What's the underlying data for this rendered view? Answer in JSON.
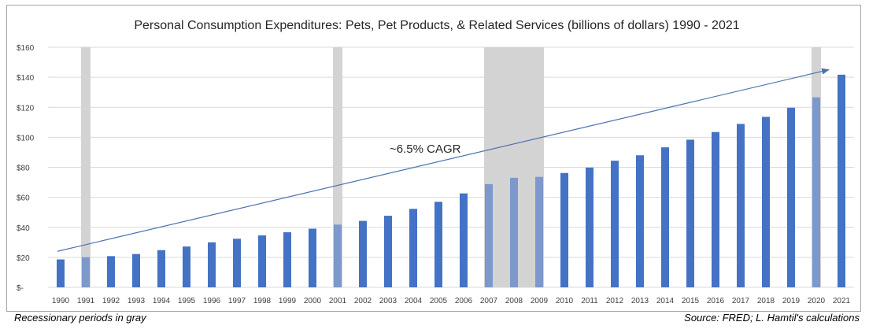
{
  "chart_data": {
    "type": "bar",
    "title": "Personal Consumption Expenditures: Pets, Pet Products, & Related Services (billions of dollars) 1990 - 2021",
    "categories": [
      "1990",
      "1991",
      "1992",
      "1993",
      "1994",
      "1995",
      "1996",
      "1997",
      "1998",
      "1999",
      "2000",
      "2001",
      "2002",
      "2003",
      "2004",
      "2005",
      "2006",
      "2007",
      "2008",
      "2009",
      "2010",
      "2011",
      "2012",
      "2013",
      "2014",
      "2015",
      "2016",
      "2017",
      "2018",
      "2019",
      "2020",
      "2021"
    ],
    "values": [
      18.6,
      20.1,
      20.8,
      22.2,
      24.8,
      27.2,
      30.0,
      32.4,
      34.6,
      36.7,
      39.1,
      41.8,
      44.3,
      47.7,
      52.3,
      57.0,
      62.6,
      68.8,
      73.0,
      73.6,
      76.2,
      79.8,
      84.4,
      88.0,
      93.3,
      98.4,
      103.5,
      108.9,
      113.6,
      119.7,
      126.6,
      141.7
    ],
    "ylim": [
      0,
      160
    ],
    "yticks": [
      {
        "value": 0,
        "label": "$-"
      },
      {
        "value": 20,
        "label": "$20"
      },
      {
        "value": 40,
        "label": "$40"
      },
      {
        "value": 60,
        "label": "$60"
      },
      {
        "value": 80,
        "label": "$80"
      },
      {
        "value": 100,
        "label": "$100"
      },
      {
        "value": 120,
        "label": "$120"
      },
      {
        "value": 140,
        "label": "$140"
      },
      {
        "value": 160,
        "label": "$160"
      }
    ],
    "grid": true,
    "recessions": [
      {
        "start": "1991",
        "end": "1991"
      },
      {
        "start": "2001",
        "end": "2001"
      },
      {
        "start": "2007",
        "end": "2009"
      },
      {
        "start": "2020",
        "end": "2020"
      }
    ],
    "trend": {
      "start": [
        "1990",
        24
      ],
      "end": [
        "2021",
        145
      ]
    },
    "annotation": "~6.5% CAGR",
    "colors": {
      "bar": "#4472c4",
      "recession": "#d3d3d3",
      "trend": "#4a72b0",
      "grid": "#d9d9d9"
    }
  },
  "footer": {
    "left": "Recessionary periods in gray",
    "right": "Source:  FRED; L. Hamtil's calculations"
  }
}
